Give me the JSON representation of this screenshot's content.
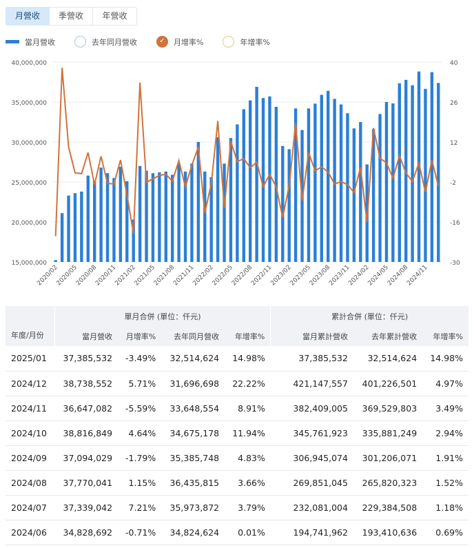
{
  "tabs": [
    {
      "label": "月營收",
      "active": true
    },
    {
      "label": "季營收"
    },
    {
      "label": "年營收"
    }
  ],
  "legend": [
    {
      "label": "當月營收",
      "icon": "bar-swatch",
      "color": "#2b7fd6"
    },
    {
      "label": "去年同月營收",
      "icon": "circle-unchecked",
      "color": "#a9c6e4"
    },
    {
      "label": "月增率%",
      "icon": "circle-checked",
      "color": "#d0733c"
    },
    {
      "label": "年增率%",
      "icon": "circle-unchecked",
      "color": "#e3c98e"
    }
  ],
  "chart_data": {
    "type": "bar+line",
    "left_axis": {
      "ylim": [
        15000000,
        40000000
      ],
      "ticks": [
        "40,000,000",
        "35,000,000",
        "30,000,000",
        "25,000,000",
        "20,000,000",
        "15,000,000"
      ]
    },
    "right_axis": {
      "ylim": [
        -30,
        40
      ],
      "ticks": [
        "40",
        "26",
        "12",
        "-2",
        "-16",
        "-30"
      ]
    },
    "grid": true,
    "x_tick_labels": [
      "2020/02",
      "2020/05",
      "2020/08",
      "2020/11",
      "2021/02",
      "2021/05",
      "2021/08",
      "2021/11",
      "2022/02",
      "2022/05",
      "2022/08",
      "2022/11",
      "2023/02",
      "2023/05",
      "2023/08",
      "2023/11",
      "2024/02",
      "2024/05",
      "2024/08",
      "2024/11"
    ],
    "categories": [
      "2020/02",
      "2020/03",
      "2020/04",
      "2020/05",
      "2020/06",
      "2020/07",
      "2020/08",
      "2020/09",
      "2020/10",
      "2020/11",
      "2020/12",
      "2021/01",
      "2021/02",
      "2021/03",
      "2021/04",
      "2021/05",
      "2021/06",
      "2021/07",
      "2021/08",
      "2021/09",
      "2021/10",
      "2021/11",
      "2021/12",
      "2022/01",
      "2022/02",
      "2022/03",
      "2022/04",
      "2022/05",
      "2022/06",
      "2022/07",
      "2022/08",
      "2022/09",
      "2022/10",
      "2022/11",
      "2022/12",
      "2023/01",
      "2023/02",
      "2023/03",
      "2023/04",
      "2023/05",
      "2023/06",
      "2023/07",
      "2023/08",
      "2023/09",
      "2023/10",
      "2023/11",
      "2023/12",
      "2024/01",
      "2024/02",
      "2024/03",
      "2024/04",
      "2024/05",
      "2024/06",
      "2024/07",
      "2024/08",
      "2024/09",
      "2024/10",
      "2024/11",
      "2024/12",
      "2025/01"
    ],
    "series": [
      {
        "name": "當月營收",
        "type": "bar",
        "axis": "left",
        "color": "#2b7fd6",
        "values": [
          15230000,
          21100000,
          23300000,
          23600000,
          23800000,
          25800000,
          25100000,
          26800000,
          26100000,
          25500000,
          26900000,
          25100000,
          20300000,
          27000000,
          26400000,
          26100000,
          26200000,
          26300000,
          25900000,
          27300000,
          26300000,
          27300000,
          30000000,
          26300000,
          25600000,
          30600000,
          27300000,
          30500000,
          32200000,
          34100000,
          35200000,
          36900000,
          35500000,
          35700000,
          34400000,
          29500000,
          29100000,
          34200000,
          31500000,
          34200000,
          34800000,
          35900000,
          36400000,
          35400000,
          34700000,
          33600000,
          31700000,
          32500000,
          27200000,
          31600000,
          33500000,
          35000000,
          34828692,
          37339042,
          37770041,
          37094029,
          38816849,
          36647082,
          38738552,
          37385532
        ]
      },
      {
        "name": "月增率%",
        "type": "line",
        "axis": "right",
        "color": "#d0733c",
        "values": [
          -21,
          38,
          10.3,
          1.2,
          0.9,
          8.3,
          -2.9,
          7.0,
          -2.5,
          -2.7,
          5.7,
          -6.5,
          -20,
          32.8,
          -2.1,
          -0.9,
          0.3,
          0.7,
          -1.7,
          5.5,
          -3.7,
          3.9,
          10.3,
          -12.9,
          -2.5,
          19.4,
          -11,
          12.3,
          5.1,
          6.2,
          3.0,
          4.9,
          -3.7,
          0.7,
          -3.7,
          -14.4,
          -3.3,
          18.7,
          -8.5,
          8.3,
          1.9,
          3.3,
          1.5,
          -2.7,
          -1.9,
          -2.9,
          -5.7,
          3.1,
          -16.1,
          16.9,
          6.3,
          4.7,
          -0.71,
          7.21,
          1.15,
          -1.79,
          4.64,
          -5.59,
          5.71,
          -3.49
        ]
      }
    ]
  },
  "table": {
    "group_single": "單月合併 (單位：仟元)",
    "group_cum": "累計合併 (單位：仟元)",
    "headers": [
      "年度/月份",
      "當月營收",
      "月增率%",
      "去年同月營收",
      "年增率%",
      "當月累計營收",
      "去年累計營收",
      "年增率%"
    ],
    "rows": [
      [
        "2025/01",
        "37,385,532",
        "-3.49%",
        "32,514,624",
        "14.98%",
        "37,385,532",
        "32,514,624",
        "14.98%"
      ],
      [
        "2024/12",
        "38,738,552",
        "5.71%",
        "31,696,698",
        "22.22%",
        "421,147,557",
        "401,226,501",
        "4.97%"
      ],
      [
        "2024/11",
        "36,647,082",
        "-5.59%",
        "33,648,554",
        "8.91%",
        "382,409,005",
        "369,529,803",
        "3.49%"
      ],
      [
        "2024/10",
        "38,816,849",
        "4.64%",
        "34,675,178",
        "11.94%",
        "345,761,923",
        "335,881,249",
        "2.94%"
      ],
      [
        "2024/09",
        "37,094,029",
        "-1.79%",
        "35,385,748",
        "4.83%",
        "306,945,074",
        "301,206,071",
        "1.91%"
      ],
      [
        "2024/08",
        "37,770,041",
        "1.15%",
        "36,435,815",
        "3.66%",
        "269,851,045",
        "265,820,323",
        "1.52%"
      ],
      [
        "2024/07",
        "37,339,042",
        "7.21%",
        "35,973,872",
        "3.79%",
        "232,081,004",
        "229,384,508",
        "1.18%"
      ],
      [
        "2024/06",
        "34,828,692",
        "-0.71%",
        "34,824,624",
        "0.01%",
        "194,741,962",
        "193,410,636",
        "0.69%"
      ]
    ]
  }
}
